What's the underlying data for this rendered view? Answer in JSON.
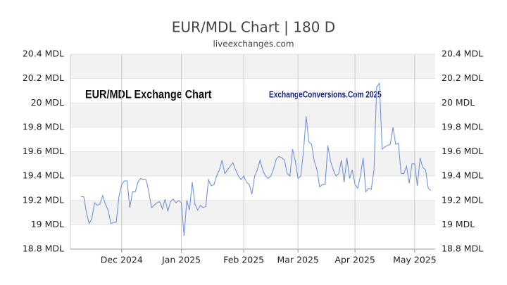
{
  "chart_data": {
    "type": "line",
    "title": "EUR/MDL Chart | 180 D",
    "subtitle": "liveexchanges.com",
    "annotations": [
      "EUR/MDL Exchange Chart",
      "ExchangeConversions.Com 2025"
    ],
    "categories": [
      null,
      null,
      null,
      null,
      null,
      null,
      null,
      null,
      null,
      null,
      null,
      null,
      null,
      null,
      null,
      "Dec 2024",
      null,
      null,
      null,
      null,
      null,
      null,
      null,
      null,
      null,
      null,
      null,
      null,
      null,
      null,
      null,
      null,
      null,
      null,
      null,
      null,
      null,
      "Jan 2025",
      null,
      null,
      null,
      null,
      null,
      null,
      null,
      null,
      null,
      null,
      null,
      null,
      null,
      null,
      null,
      null,
      null,
      null,
      null,
      null,
      null,
      null,
      "Feb 2025",
      null,
      null,
      null,
      null,
      null,
      null,
      null,
      null,
      null,
      null,
      null,
      null,
      null,
      null,
      null,
      null,
      null,
      null,
      null,
      "Mar 2025",
      null,
      null,
      null,
      null,
      null,
      null,
      null,
      null,
      null,
      null,
      null,
      null,
      null,
      null,
      null,
      null,
      null,
      null,
      null,
      null,
      "Apr 2025",
      null,
      null,
      null,
      null,
      null,
      null,
      null,
      null,
      null,
      null,
      null,
      null,
      null,
      null,
      null,
      null,
      null,
      null,
      null,
      null,
      null,
      "May 2025",
      null,
      null,
      null,
      null,
      null,
      null
    ],
    "series": [
      {
        "name": "EUR/MDL",
        "color": "#7393dc",
        "values": [
          19.23,
          19.23,
          19.1,
          19.01,
          19.05,
          19.18,
          19.16,
          19.17,
          19.24,
          19.17,
          19.12,
          19.01,
          19.02,
          19.02,
          19.23,
          19.33,
          19.36,
          19.36,
          19.14,
          19.27,
          19.27,
          19.35,
          19.38,
          19.37,
          19.37,
          19.27,
          19.14,
          19.16,
          19.18,
          19.19,
          19.13,
          19.21,
          19.11,
          19.19,
          19.21,
          19.18,
          19.2,
          19.18,
          18.91,
          19.2,
          19.12,
          19.35,
          19.17,
          19.12,
          19.16,
          19.14,
          19.15,
          19.37,
          19.32,
          19.33,
          19.4,
          19.45,
          19.53,
          19.42,
          19.45,
          19.48,
          19.51,
          19.45,
          19.4,
          19.37,
          19.4,
          19.35,
          19.33,
          19.25,
          19.4,
          19.45,
          19.53,
          19.45,
          19.4,
          19.38,
          19.4,
          19.46,
          19.54,
          19.56,
          19.55,
          19.53,
          19.42,
          19.4,
          19.62,
          19.52,
          19.38,
          19.4,
          19.6,
          19.89,
          19.68,
          19.66,
          19.52,
          19.45,
          19.31,
          19.33,
          19.33,
          19.65,
          19.52,
          19.45,
          19.4,
          19.42,
          19.53,
          19.35,
          19.55,
          19.38,
          19.45,
          19.33,
          19.3,
          19.4,
          19.55,
          19.27,
          19.3,
          19.29,
          19.45,
          20.13,
          20.16,
          19.62,
          19.64,
          19.65,
          19.66,
          19.8,
          19.66,
          19.67,
          19.42,
          19.42,
          19.48,
          19.34,
          19.5,
          19.5,
          19.32,
          19.55,
          19.47,
          19.45,
          19.3,
          19.28
        ]
      }
    ],
    "ylim": [
      18.8,
      20.4
    ],
    "yticks": [
      {
        "value": 18.8,
        "label": "18.8 MDL"
      },
      {
        "value": 19,
        "label": "19 MDL"
      },
      {
        "value": 19.2,
        "label": "19.2 MDL"
      },
      {
        "value": 19.4,
        "label": "19.4 MDL"
      },
      {
        "value": 19.6,
        "label": "19.6 MDL"
      },
      {
        "value": 19.8,
        "label": "19.8 MDL"
      },
      {
        "value": 20,
        "label": "20 MDL"
      },
      {
        "value": 20.2,
        "label": "20.2 MDL"
      },
      {
        "value": 20.4,
        "label": "20.4 MDL"
      }
    ],
    "grid": true
  }
}
